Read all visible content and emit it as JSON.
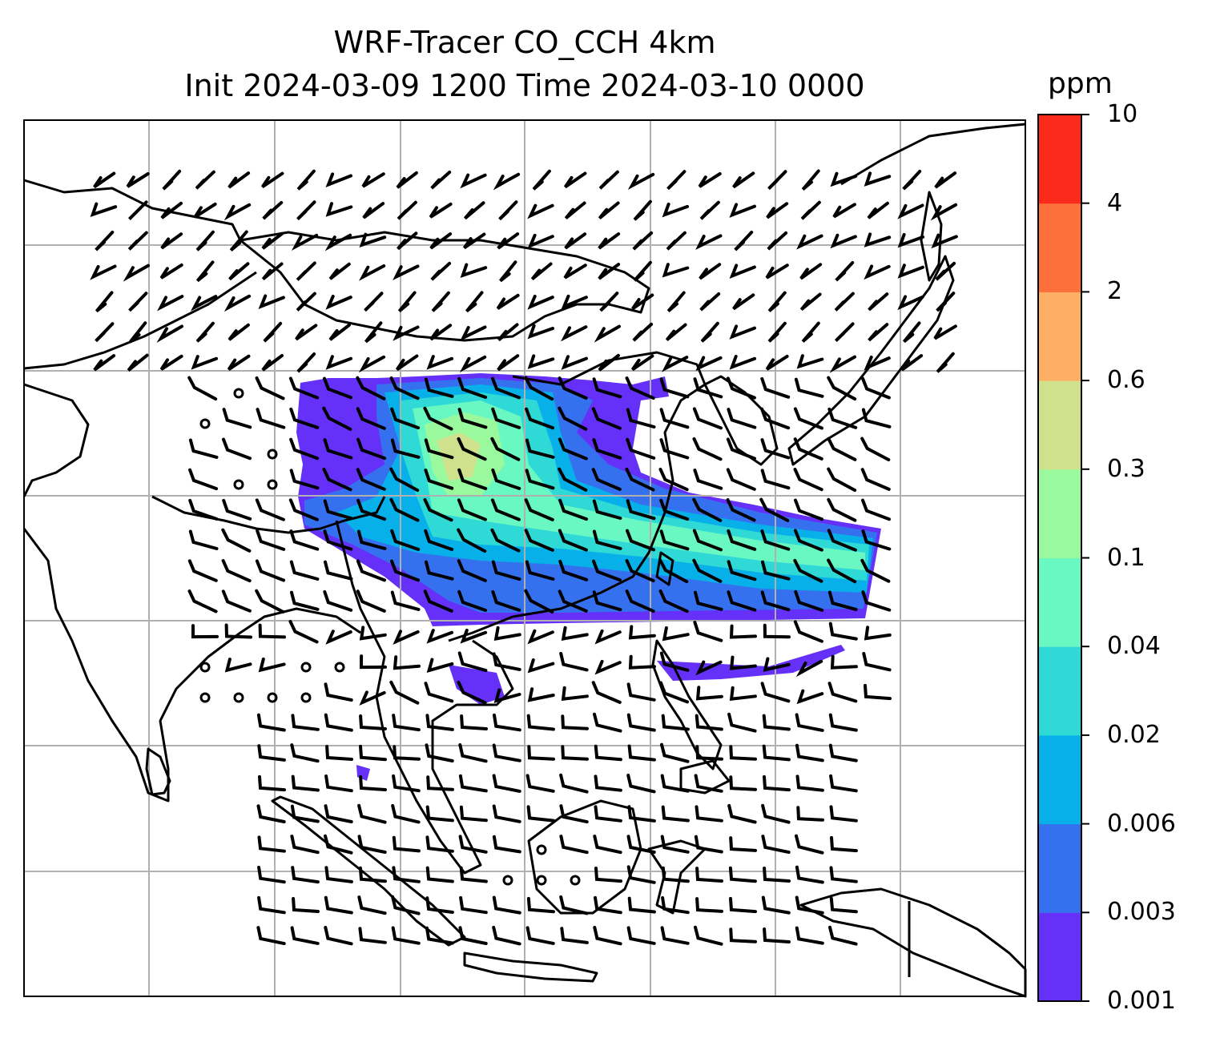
{
  "title_line1": "WRF-Tracer CO_CCH 4km",
  "title_line2": "Init 2024-03-09 1200 Time 2024-03-10 0000",
  "colorbar": {
    "unit": "ppm",
    "levels": [
      "0.001",
      "0.003",
      "0.006",
      "0.02",
      "0.04",
      "0.1",
      "0.3",
      "0.6",
      "2",
      "4",
      "10"
    ],
    "colors": [
      "#6530f7",
      "#3571ef",
      "#07b0e9",
      "#2ed9d6",
      "#6af8c2",
      "#99f99c",
      "#cfe18c",
      "#fdb063",
      "#fd6f3b",
      "#fb2b1b"
    ]
  },
  "map": {
    "grid_lines": "on",
    "features": [
      "coastlines",
      "country-borders",
      "wind-barbs",
      "CO-tracer-field"
    ]
  }
}
